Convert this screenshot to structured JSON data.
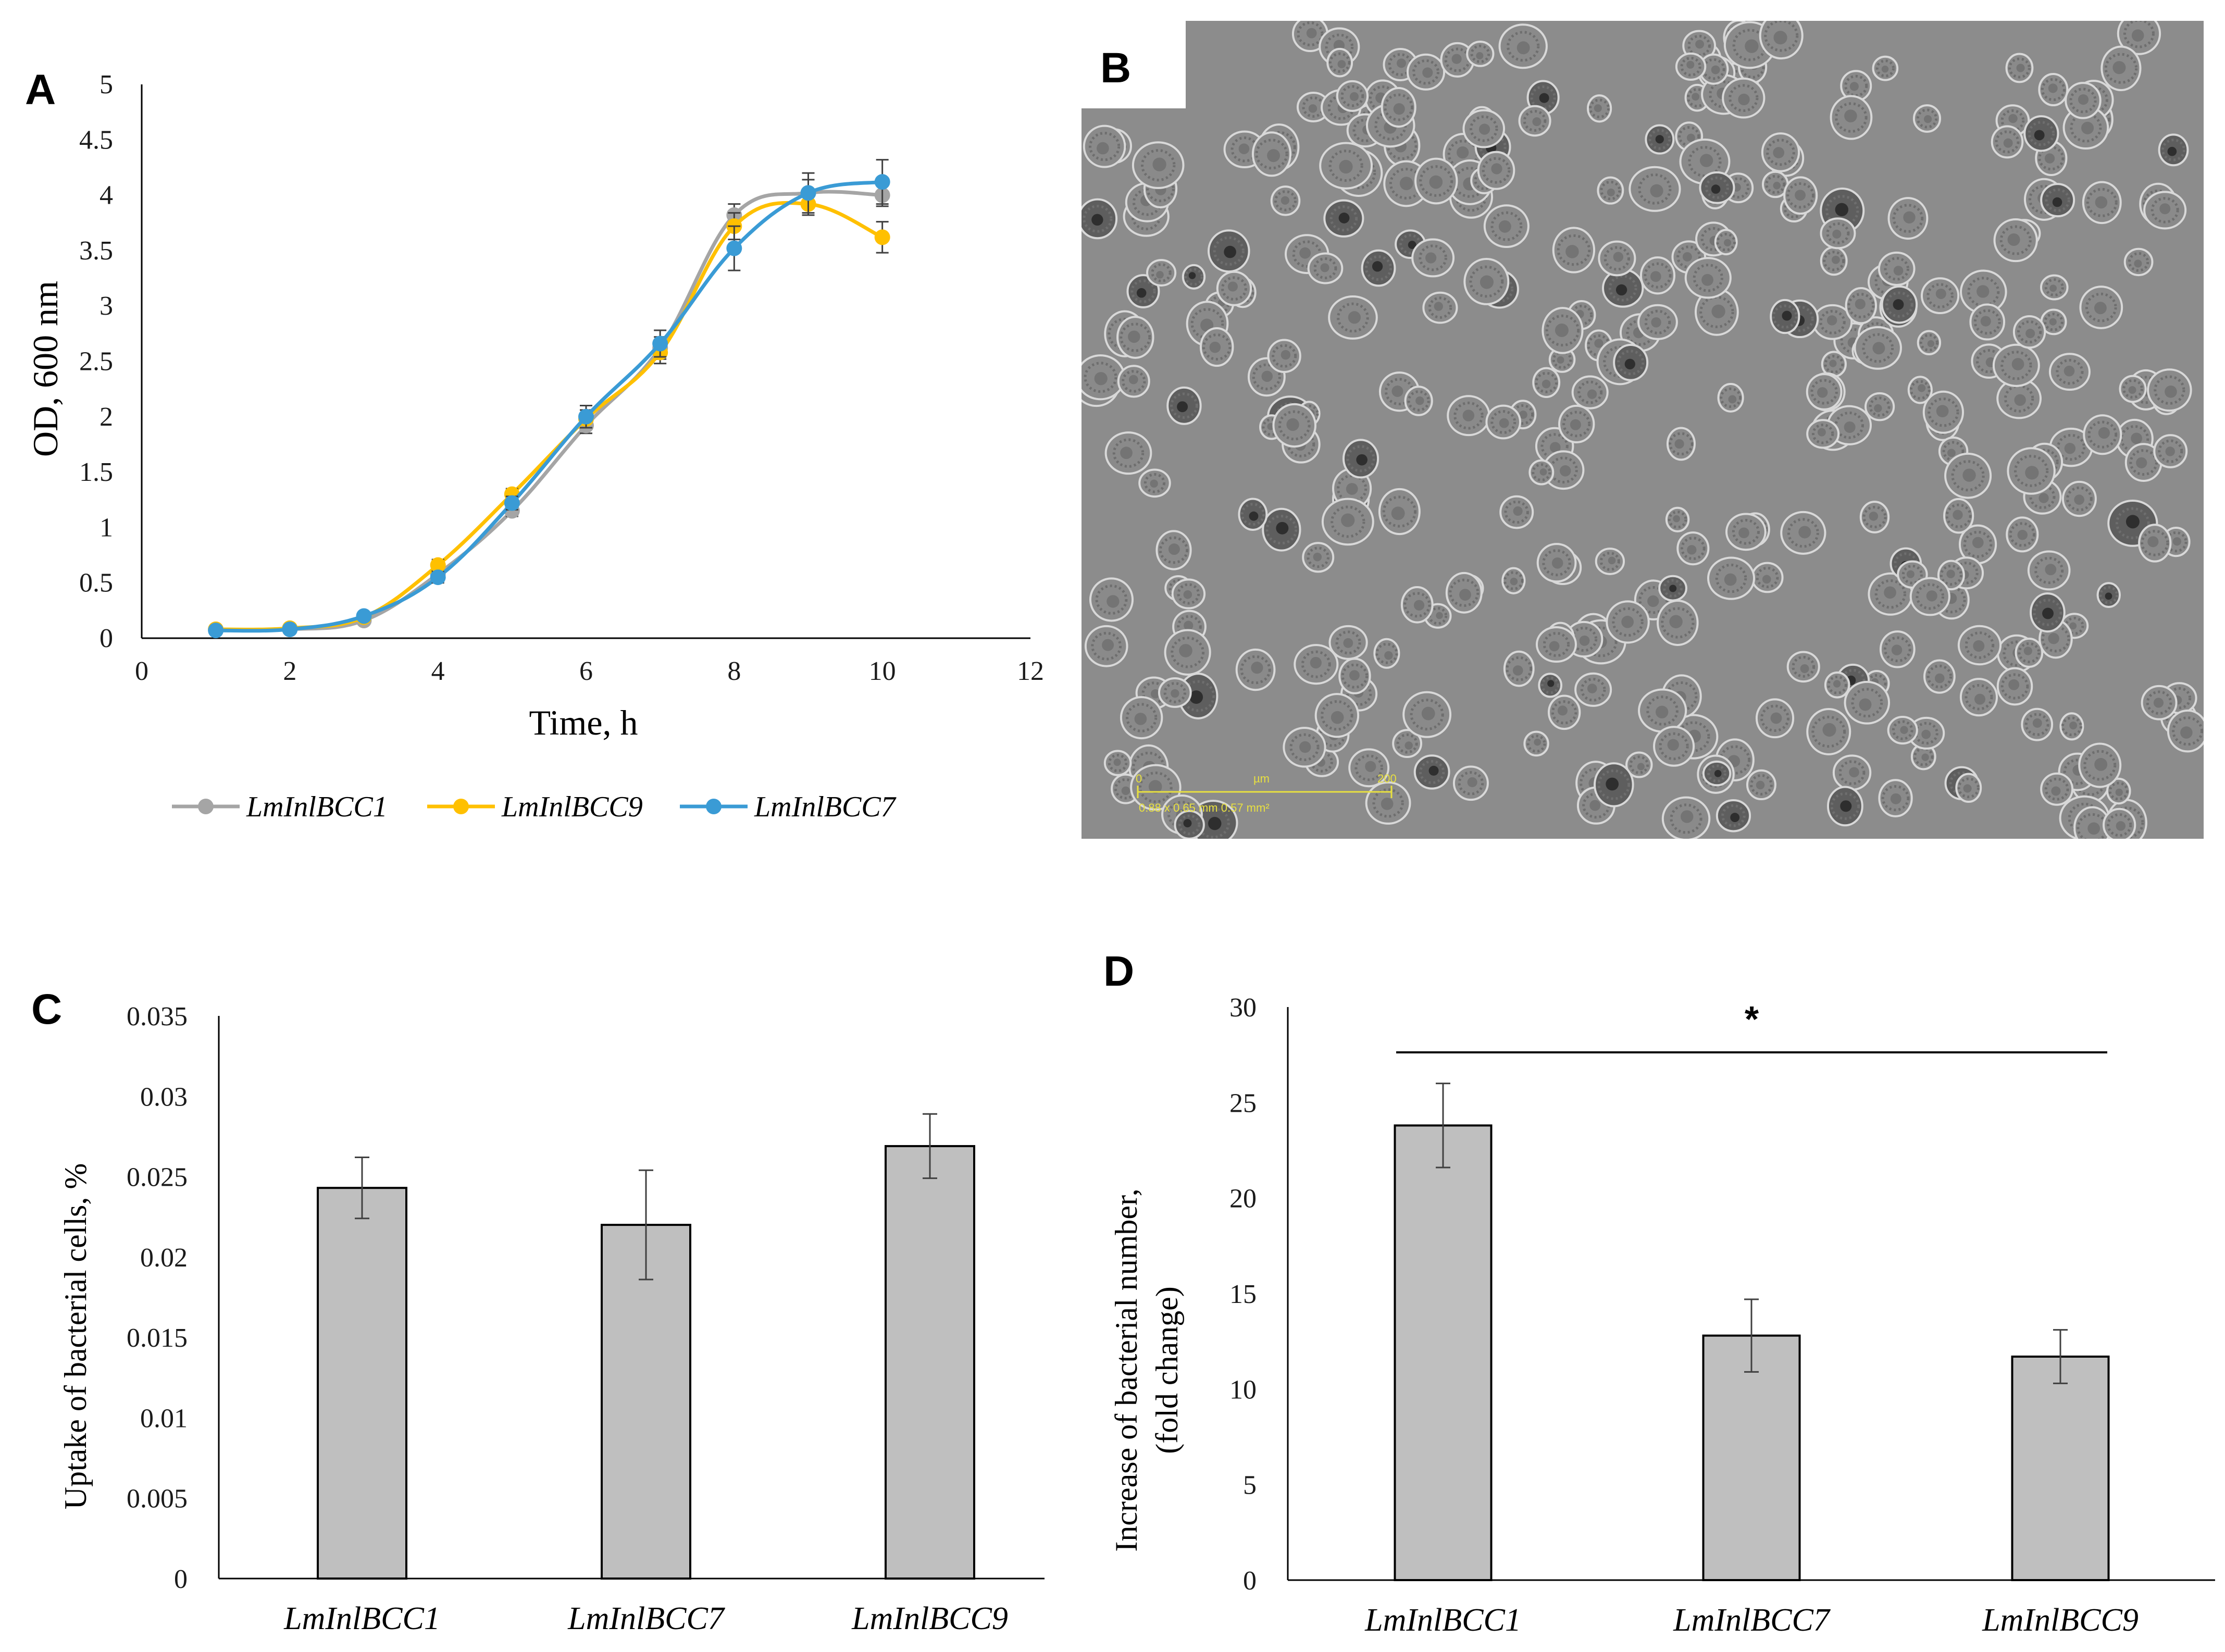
{
  "panels": {
    "A": "A",
    "B": "B",
    "C": "C",
    "D": "D"
  },
  "micrograph": {
    "scale_start": "0",
    "scale_unit": "µm",
    "scale_end": "200",
    "scale_info": "0.88 x 0.65 mm 0.57 mm²",
    "bg_color": "#8c8c8c"
  },
  "colors": {
    "gray_series": "#a5a5a5",
    "yellow_series": "#ffc000",
    "blue_series": "#3a9bd5",
    "bar_fill": "#bfbfbf"
  },
  "chart_data": [
    {
      "id": "A",
      "type": "line",
      "title": "",
      "xlabel": "Time, h",
      "ylabel": "OD, 600 nm",
      "xlim": [
        0,
        12
      ],
      "ylim": [
        0,
        5
      ],
      "xticks": [
        0,
        2,
        4,
        6,
        8,
        10,
        12
      ],
      "yticks": [
        0,
        0.5,
        1,
        1.5,
        2,
        2.5,
        3,
        3.5,
        4,
        4.5,
        5
      ],
      "x": [
        1,
        2,
        3,
        4,
        5,
        6,
        7,
        8,
        9,
        10
      ],
      "series": [
        {
          "name": "LmInlBCC1",
          "color": "#a5a5a5",
          "values": [
            0.08,
            0.08,
            0.16,
            0.58,
            1.15,
            1.92,
            2.62,
            3.82,
            4.02,
            4.0
          ],
          "errors": [
            0.02,
            0.02,
            0.03,
            0.05,
            0.05,
            0.07,
            0.1,
            0.1,
            0.12,
            0.1
          ]
        },
        {
          "name": "LmInlBCC9",
          "color": "#ffc000",
          "values": [
            0.08,
            0.09,
            0.19,
            0.66,
            1.3,
            1.98,
            2.58,
            3.72,
            3.92,
            3.62
          ],
          "errors": [
            0.02,
            0.02,
            0.03,
            0.05,
            0.05,
            0.08,
            0.1,
            0.12,
            0.1,
            0.14
          ]
        },
        {
          "name": "LmInlBCC7",
          "color": "#3a9bd5",
          "values": [
            0.07,
            0.08,
            0.2,
            0.55,
            1.22,
            2.0,
            2.66,
            3.52,
            4.02,
            4.12
          ],
          "errors": [
            0.02,
            0.02,
            0.03,
            0.05,
            0.06,
            0.1,
            0.12,
            0.2,
            0.18,
            0.2
          ]
        }
      ],
      "legend_position": "bottom"
    },
    {
      "id": "C",
      "type": "bar",
      "title": "",
      "xlabel": "",
      "ylabel": "Uptake of bacterial cells, %",
      "ylim": [
        0,
        0.035
      ],
      "yticks": [
        0,
        0.005,
        0.01,
        0.015,
        0.02,
        0.025,
        0.03,
        0.035
      ],
      "ytick_labels": [
        "0",
        "0.005",
        "0.01",
        "0.015",
        "0.02",
        "0.025",
        "0.03",
        "0.035"
      ],
      "categories": [
        "LmInlBCC1",
        "LmInlBCC7",
        "LmInlBCC9"
      ],
      "values": [
        0.0243,
        0.022,
        0.0269
      ],
      "errors": [
        0.0019,
        0.0034,
        0.002
      ]
    },
    {
      "id": "D",
      "type": "bar",
      "title": "",
      "xlabel": "",
      "ylabel": [
        "Increase of  bacterial number,",
        "(fold change)"
      ],
      "ylim": [
        0,
        30
      ],
      "yticks": [
        0,
        5,
        10,
        15,
        20,
        25,
        30
      ],
      "ytick_labels": [
        "0",
        "5",
        "10",
        "15",
        "20",
        "25",
        "30"
      ],
      "categories": [
        "LmInlBCC1",
        "LmInlBCC7",
        "LmInlBCC9"
      ],
      "values": [
        23.8,
        12.8,
        11.7
      ],
      "errors": [
        2.2,
        1.9,
        1.4
      ],
      "annotation": "*",
      "annotation_span": [
        "LmInlBCC1",
        "LmInlBCC9"
      ]
    }
  ]
}
